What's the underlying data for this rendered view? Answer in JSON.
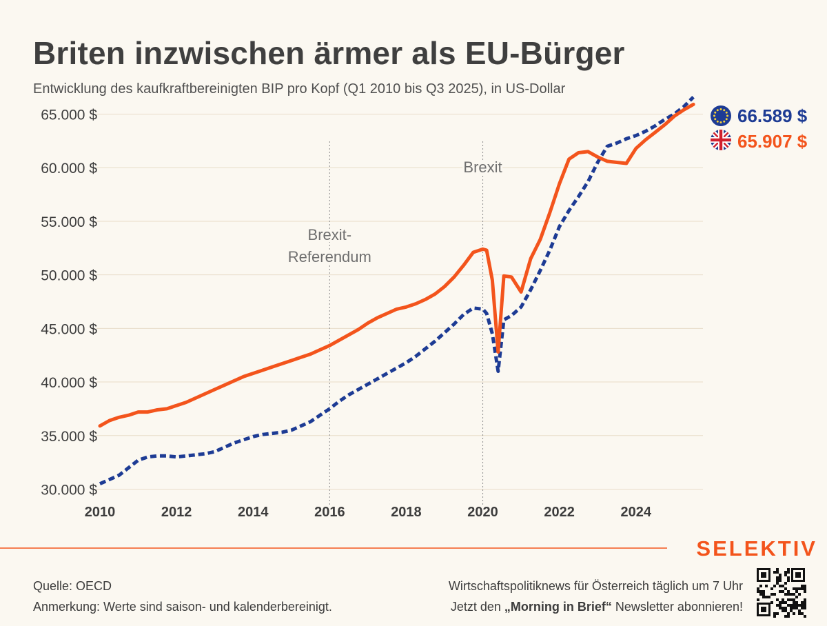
{
  "header": {
    "title": "Briten inzwischen ärmer als EU-Bürger",
    "subtitle": "Entwicklung des kaufkraftbereinigten BIP pro Kopf (Q1 2010 bis Q3 2025), in US-Dollar"
  },
  "legend": {
    "eu": {
      "value_label": "66.589 $",
      "color": "#1d3b94",
      "icon": "eu-flag-icon"
    },
    "uk": {
      "value_label": "65.907 $",
      "color": "#f3541c",
      "icon": "uk-flag-icon"
    }
  },
  "chart_data": {
    "type": "line",
    "title": "Briten inzwischen ärmer als EU-Bürger",
    "ylim": [
      29000,
      66000
    ],
    "xlim": [
      2010,
      2025.75
    ],
    "y_ticks": [
      30000,
      35000,
      40000,
      45000,
      50000,
      55000,
      60000,
      65000
    ],
    "y_tick_labels": [
      "30.000 $",
      "35.000 $",
      "40.000 $",
      "45.000 $",
      "50.000 $",
      "55.000 $",
      "60.000 $",
      "65.000 $"
    ],
    "x_ticks": [
      2010,
      2012,
      2014,
      2016,
      2018,
      2020,
      2022,
      2024
    ],
    "x_tick_labels": [
      "2010",
      "2012",
      "2014",
      "2016",
      "2018",
      "2020",
      "2022",
      "2024"
    ],
    "annotations": [
      {
        "x": 2016.0,
        "lines": [
          "Brexit-",
          "Referendum"
        ]
      },
      {
        "x": 2020.0,
        "lines": [
          "Brexit"
        ]
      }
    ],
    "series": [
      {
        "name": "Vereinigtes Königreich",
        "color": "#f3541c",
        "style": "solid",
        "points": [
          [
            2010,
            35900
          ],
          [
            2010.25,
            36400
          ],
          [
            2010.5,
            36700
          ],
          [
            2010.75,
            36900
          ],
          [
            2011,
            37200
          ],
          [
            2011.25,
            37200
          ],
          [
            2011.5,
            37400
          ],
          [
            2011.75,
            37500
          ],
          [
            2012,
            37800
          ],
          [
            2012.25,
            38100
          ],
          [
            2012.5,
            38500
          ],
          [
            2012.75,
            38900
          ],
          [
            2013,
            39300
          ],
          [
            2013.25,
            39700
          ],
          [
            2013.5,
            40100
          ],
          [
            2013.75,
            40500
          ],
          [
            2014,
            40800
          ],
          [
            2014.25,
            41100
          ],
          [
            2014.5,
            41400
          ],
          [
            2014.75,
            41700
          ],
          [
            2015,
            42000
          ],
          [
            2015.25,
            42300
          ],
          [
            2015.5,
            42600
          ],
          [
            2015.75,
            43000
          ],
          [
            2016,
            43400
          ],
          [
            2016.25,
            43900
          ],
          [
            2016.5,
            44400
          ],
          [
            2016.75,
            44900
          ],
          [
            2017,
            45500
          ],
          [
            2017.25,
            46000
          ],
          [
            2017.5,
            46400
          ],
          [
            2017.75,
            46800
          ],
          [
            2018,
            47000
          ],
          [
            2018.25,
            47300
          ],
          [
            2018.5,
            47700
          ],
          [
            2018.75,
            48200
          ],
          [
            2019,
            48900
          ],
          [
            2019.25,
            49800
          ],
          [
            2019.5,
            50900
          ],
          [
            2019.75,
            52100
          ],
          [
            2020,
            52400
          ],
          [
            2020.1,
            52300
          ],
          [
            2020.25,
            49500
          ],
          [
            2020.4,
            42800
          ],
          [
            2020.55,
            49900
          ],
          [
            2020.75,
            49800
          ],
          [
            2021,
            48400
          ],
          [
            2021.25,
            51500
          ],
          [
            2021.5,
            53300
          ],
          [
            2021.75,
            55800
          ],
          [
            2022,
            58500
          ],
          [
            2022.25,
            60800
          ],
          [
            2022.5,
            61400
          ],
          [
            2022.75,
            61500
          ],
          [
            2023,
            61000
          ],
          [
            2023.25,
            60600
          ],
          [
            2023.5,
            60500
          ],
          [
            2023.75,
            60400
          ],
          [
            2024,
            61800
          ],
          [
            2024.25,
            62600
          ],
          [
            2024.5,
            63300
          ],
          [
            2024.75,
            64000
          ],
          [
            2025,
            64800
          ],
          [
            2025.25,
            65400
          ],
          [
            2025.5,
            65907
          ]
        ]
      },
      {
        "name": "Europäische Union",
        "color": "#1d3b94",
        "style": "dashed",
        "points": [
          [
            2010,
            30500
          ],
          [
            2010.25,
            30900
          ],
          [
            2010.5,
            31300
          ],
          [
            2010.75,
            32000
          ],
          [
            2011,
            32700
          ],
          [
            2011.25,
            33000
          ],
          [
            2011.5,
            33100
          ],
          [
            2011.75,
            33100
          ],
          [
            2012,
            33000
          ],
          [
            2012.25,
            33100
          ],
          [
            2012.5,
            33200
          ],
          [
            2012.75,
            33300
          ],
          [
            2013,
            33500
          ],
          [
            2013.25,
            33900
          ],
          [
            2013.5,
            34300
          ],
          [
            2013.75,
            34600
          ],
          [
            2014,
            34900
          ],
          [
            2014.25,
            35100
          ],
          [
            2014.5,
            35200
          ],
          [
            2014.75,
            35300
          ],
          [
            2015,
            35500
          ],
          [
            2015.25,
            35900
          ],
          [
            2015.5,
            36300
          ],
          [
            2015.75,
            36900
          ],
          [
            2016,
            37500
          ],
          [
            2016.25,
            38200
          ],
          [
            2016.5,
            38800
          ],
          [
            2016.75,
            39300
          ],
          [
            2017,
            39800
          ],
          [
            2017.25,
            40300
          ],
          [
            2017.5,
            40800
          ],
          [
            2017.75,
            41300
          ],
          [
            2018,
            41800
          ],
          [
            2018.25,
            42400
          ],
          [
            2018.5,
            43100
          ],
          [
            2018.75,
            43800
          ],
          [
            2019,
            44600
          ],
          [
            2019.25,
            45400
          ],
          [
            2019.5,
            46300
          ],
          [
            2019.75,
            46900
          ],
          [
            2020,
            46800
          ],
          [
            2020.1,
            46400
          ],
          [
            2020.25,
            44500
          ],
          [
            2020.4,
            41000
          ],
          [
            2020.55,
            45800
          ],
          [
            2020.75,
            46200
          ],
          [
            2021,
            47000
          ],
          [
            2021.25,
            48600
          ],
          [
            2021.5,
            50400
          ],
          [
            2021.75,
            52300
          ],
          [
            2022,
            54500
          ],
          [
            2022.25,
            56000
          ],
          [
            2022.5,
            57300
          ],
          [
            2022.75,
            58700
          ],
          [
            2023,
            60500
          ],
          [
            2023.25,
            62000
          ],
          [
            2023.5,
            62300
          ],
          [
            2023.75,
            62700
          ],
          [
            2024,
            63000
          ],
          [
            2024.25,
            63400
          ],
          [
            2024.5,
            63900
          ],
          [
            2024.75,
            64500
          ],
          [
            2025,
            65000
          ],
          [
            2025.25,
            65700
          ],
          [
            2025.5,
            66589
          ]
        ]
      }
    ]
  },
  "footer": {
    "source": "Quelle: OECD",
    "note": "Anmerkung: Werte sind saison- und kalenderbereinigt.",
    "promo_line1": "Wirtschaftspolitiknews für Österreich täglich um 7 Uhr",
    "promo_line2_prefix": "Jetzt den ",
    "promo_line2_bold": "„Morning in Brief“",
    "promo_line2_suffix": " Newsletter abonnieren!",
    "brand": "SELEKTIV"
  }
}
